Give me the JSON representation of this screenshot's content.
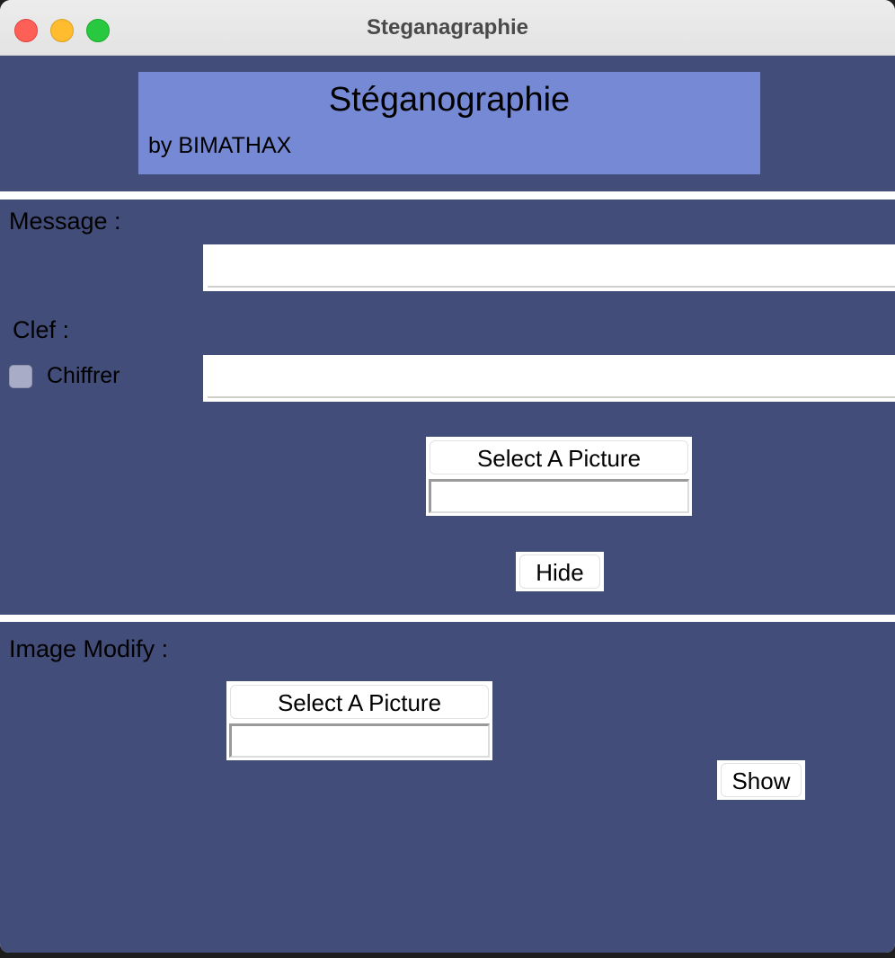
{
  "window": {
    "title": "Steganagraphie"
  },
  "header": {
    "title": "Stéganographie",
    "subtitle": "by BIMATHAX"
  },
  "hide_section": {
    "message_label": "Message :",
    "message_value": "",
    "key_label": "Clef :",
    "encrypt_label": "Chiffrer",
    "encrypt_checked": false,
    "key_value": "",
    "select_picture_label": "Select A Picture",
    "picture_path": "",
    "hide_button": "Hide"
  },
  "show_section": {
    "image_label": "Image Modify :",
    "select_picture_label": "Select A Picture",
    "picture_path": "",
    "show_button": "Show"
  },
  "colors": {
    "panel_bg": "#424d7a",
    "header_bg": "#7689d5",
    "close": "#fe5f57",
    "minimize": "#febc2e",
    "maximize": "#28c840"
  }
}
